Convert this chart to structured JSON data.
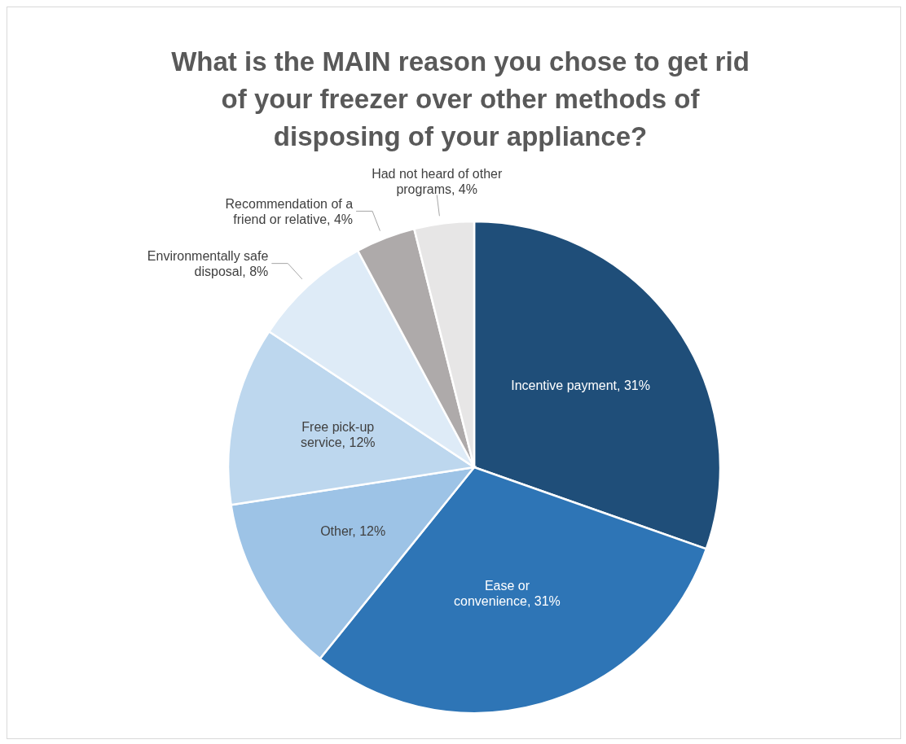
{
  "chart_data": {
    "type": "pie",
    "title": "What is the MAIN reason you chose to get rid of your freezer over other methods of disposing of your appliance?",
    "categories": [
      "Incentive payment",
      "Ease or convenience",
      "Other",
      "Free pick-up service",
      "Environmentally safe disposal",
      "Recommendation of a friend or relative",
      "Had not heard of other programs"
    ],
    "values": [
      31,
      31,
      12,
      12,
      8,
      4,
      4
    ],
    "value_labels": [
      "31%",
      "31%",
      "12%",
      "12%",
      "8%",
      "4%",
      "4%"
    ],
    "colors": [
      "#1f4e79",
      "#2e75b6",
      "#9dc3e6",
      "#bdd7ee",
      "#deebf7",
      "#aeaaaa",
      "#e7e6e6"
    ],
    "legend": false
  }
}
